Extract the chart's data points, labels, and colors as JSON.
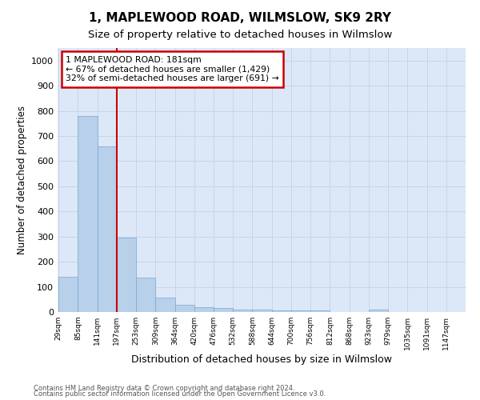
{
  "title": "1, MAPLEWOOD ROAD, WILMSLOW, SK9 2RY",
  "subtitle": "Size of property relative to detached houses in Wilmslow",
  "xlabel": "Distribution of detached houses by size in Wilmslow",
  "ylabel": "Number of detached properties",
  "bin_labels": [
    "29sqm",
    "85sqm",
    "141sqm",
    "197sqm",
    "253sqm",
    "309sqm",
    "364sqm",
    "420sqm",
    "476sqm",
    "532sqm",
    "588sqm",
    "644sqm",
    "700sqm",
    "756sqm",
    "812sqm",
    "868sqm",
    "923sqm",
    "979sqm",
    "1035sqm",
    "1091sqm",
    "1147sqm"
  ],
  "bar_values": [
    140,
    778,
    658,
    295,
    138,
    57,
    30,
    20,
    15,
    8,
    9,
    7,
    7,
    7,
    0,
    0,
    8,
    0,
    0,
    0,
    0
  ],
  "bar_color": "#b8d0ea",
  "bar_edge_color": "#7ba7d0",
  "vline_x": 3,
  "annotation_line1": "1 MAPLEWOOD ROAD: 181sqm",
  "annotation_line2": "← 67% of detached houses are smaller (1,429)",
  "annotation_line3": "32% of semi-detached houses are larger (691) →",
  "annotation_box_color": "#ffffff",
  "annotation_border_color": "#cc0000",
  "vline_color": "#cc0000",
  "ylim": [
    0,
    1050
  ],
  "yticks": [
    0,
    100,
    200,
    300,
    400,
    500,
    600,
    700,
    800,
    900,
    1000
  ],
  "grid_color": "#c8d4e8",
  "background_color": "#dce8f8",
  "footnote1": "Contains HM Land Registry data © Crown copyright and database right 2024.",
  "footnote2": "Contains public sector information licensed under the Open Government Licence v3.0.",
  "title_fontsize": 11,
  "subtitle_fontsize": 9.5,
  "xlabel_fontsize": 9,
  "ylabel_fontsize": 8.5
}
